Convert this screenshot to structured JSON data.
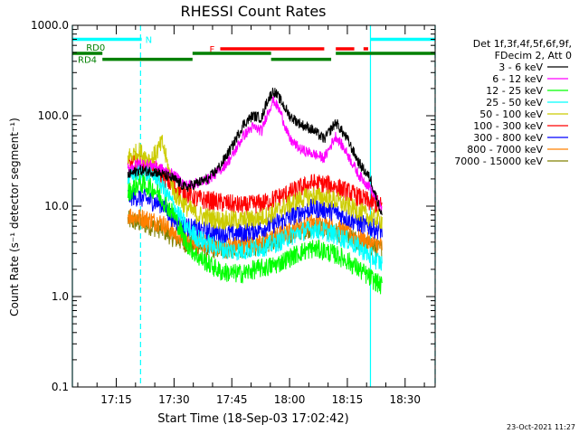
{
  "timestamp": "23-Oct-2021 11:27",
  "chart_data": {
    "type": "line",
    "title": "RHESSI Count Rates",
    "xlabel": "Start Time (18-Sep-03 17:02:42)",
    "ylabel": "Count Rate (s⁻¹ detector segment⁻¹)",
    "yscale": "log",
    "ylim": [
      0.1,
      1000
    ],
    "xlim_minutes": [
      17.06,
      18.63
    ],
    "x_ticks": [
      {
        "t": 17.25,
        "label": "17:15"
      },
      {
        "t": 17.5,
        "label": "17:30"
      },
      {
        "t": 17.75,
        "label": "17:45"
      },
      {
        "t": 18.0,
        "label": "18:00"
      },
      {
        "t": 18.25,
        "label": "18:15"
      },
      {
        "t": 18.5,
        "label": "18:30"
      }
    ],
    "y_ticks": [
      {
        "v": 1000,
        "label": "1000.0"
      },
      {
        "v": 100,
        "label": "100.0"
      },
      {
        "v": 10,
        "label": "10.0"
      },
      {
        "v": 1,
        "label": "1.0"
      },
      {
        "v": 0.1,
        "label": "0.1"
      }
    ],
    "legend": {
      "header": [
        "Det 1f,3f,4f,5f,6f,9f,",
        "FDecim 2, Att 0"
      ],
      "placement": "right"
    },
    "series": [
      {
        "name": "3 - 6 keV",
        "color": "#000000",
        "t": [
          17.3,
          17.35,
          17.42,
          17.5,
          17.55,
          17.6,
          17.65,
          17.7,
          17.75,
          17.8,
          17.84,
          17.88,
          17.9,
          17.93,
          17.96,
          18.0,
          18.05,
          18.1,
          18.15,
          18.2,
          18.25,
          18.3,
          18.35,
          18.4
        ],
        "v": [
          22,
          25,
          24,
          20,
          16,
          18,
          20,
          28,
          45,
          80,
          100,
          95,
          140,
          190,
          150,
          100,
          80,
          70,
          55,
          85,
          55,
          30,
          20,
          8
        ]
      },
      {
        "name": "6 - 12 keV",
        "color": "#ff00ff",
        "t": [
          17.3,
          17.35,
          17.42,
          17.5,
          17.55,
          17.6,
          17.65,
          17.7,
          17.75,
          17.8,
          17.84,
          17.88,
          17.9,
          17.93,
          17.96,
          18.0,
          18.05,
          18.1,
          18.15,
          18.2,
          18.25,
          18.3,
          18.35,
          18.4
        ],
        "v": [
          26,
          30,
          28,
          22,
          17,
          18,
          20,
          25,
          35,
          60,
          75,
          68,
          100,
          150,
          110,
          55,
          42,
          38,
          34,
          60,
          38,
          22,
          16,
          9
        ]
      },
      {
        "name": "12 - 25 keV",
        "color": "#00ff00",
        "t": [
          17.3,
          17.35,
          17.42,
          17.5,
          17.55,
          17.6,
          17.65,
          17.7,
          17.75,
          17.8,
          17.85,
          17.9,
          17.95,
          18.0,
          18.05,
          18.1,
          18.15,
          18.2,
          18.25,
          18.3,
          18.35,
          18.4
        ],
        "v": [
          14,
          18,
          15,
          8,
          4,
          2.8,
          2.3,
          1.9,
          1.8,
          1.8,
          2.0,
          2.1,
          2.3,
          2.7,
          3.1,
          3.4,
          3.2,
          2.9,
          2.5,
          2.0,
          1.6,
          1.3
        ]
      },
      {
        "name": "25 - 50 keV",
        "color": "#00ffff",
        "t": [
          17.3,
          17.35,
          17.42,
          17.5,
          17.55,
          17.6,
          17.65,
          17.7,
          17.75,
          17.8,
          17.85,
          17.9,
          17.95,
          18.0,
          18.05,
          18.1,
          18.15,
          18.2,
          18.25,
          18.3,
          18.35,
          18.4
        ],
        "v": [
          20,
          24,
          22,
          10,
          6,
          4.5,
          3.8,
          3.4,
          3.2,
          3.2,
          3.4,
          3.6,
          4.0,
          4.6,
          5.2,
          5.6,
          5.3,
          4.8,
          4.2,
          3.5,
          2.8,
          2.3
        ]
      },
      {
        "name": "50 - 100 keV",
        "color": "#cccc00",
        "t": [
          17.3,
          17.35,
          17.4,
          17.45,
          17.5,
          17.55,
          17.6,
          17.65,
          17.7,
          17.75,
          17.8,
          17.85,
          17.9,
          17.95,
          18.0,
          18.05,
          18.1,
          18.15,
          18.2,
          18.25,
          18.3,
          18.35,
          18.4
        ],
        "v": [
          35,
          40,
          32,
          50,
          14,
          10,
          8,
          7.5,
          7,
          7,
          7,
          7.2,
          7.8,
          9,
          10.5,
          12,
          13,
          12.5,
          11.5,
          10,
          8.8,
          7.5,
          7
        ]
      },
      {
        "name": "100 - 300 keV",
        "color": "#ff0000",
        "t": [
          17.3,
          17.35,
          17.4,
          17.45,
          17.5,
          17.55,
          17.6,
          17.65,
          17.7,
          17.75,
          17.8,
          17.85,
          17.9,
          17.95,
          18.0,
          18.05,
          18.1,
          18.15,
          18.2,
          18.25,
          18.3,
          18.35,
          18.4
        ],
        "v": [
          28,
          30,
          26,
          22,
          16,
          14,
          12,
          11.5,
          11,
          10.5,
          10,
          10.5,
          11,
          12.5,
          14,
          16,
          18,
          17.5,
          16.5,
          14.5,
          12.5,
          11,
          10
        ]
      },
      {
        "name": "300 - 800 keV",
        "color": "#0000ff",
        "t": [
          17.3,
          17.35,
          17.4,
          17.45,
          17.5,
          17.55,
          17.6,
          17.65,
          17.7,
          17.75,
          17.8,
          17.85,
          17.9,
          17.95,
          18.0,
          18.05,
          18.1,
          18.15,
          18.2,
          18.25,
          18.3,
          18.35,
          18.4
        ],
        "v": [
          13,
          12.5,
          11.5,
          10.5,
          7,
          6,
          5.5,
          5.2,
          5.0,
          5.0,
          5.1,
          5.4,
          5.9,
          6.6,
          7.5,
          8.6,
          9.5,
          9.2,
          8.5,
          7.4,
          6.5,
          5.8,
          5.4
        ]
      },
      {
        "name": "800 - 7000 keV",
        "color": "#ff8000",
        "t": [
          17.3,
          17.35,
          17.4,
          17.45,
          17.5,
          17.55,
          17.6,
          17.65,
          17.7,
          17.75,
          17.8,
          17.85,
          17.9,
          17.95,
          18.0,
          18.05,
          18.1,
          18.15,
          18.2,
          18.25,
          18.3,
          18.35,
          18.4
        ],
        "v": [
          8,
          7.5,
          7,
          6.5,
          5,
          4.3,
          4.0,
          3.8,
          3.6,
          3.6,
          3.7,
          3.9,
          4.2,
          4.7,
          5.3,
          6.0,
          6.5,
          6.3,
          5.8,
          5.0,
          4.4,
          3.9,
          3.6
        ]
      },
      {
        "name": "7000 - 15000 keV",
        "color": "#808000",
        "t": [
          17.3,
          17.35,
          17.4,
          17.45,
          17.5,
          17.55,
          17.6,
          17.65,
          17.7,
          17.75,
          17.8,
          17.85,
          17.9,
          17.95,
          18.0,
          18.05,
          18.1,
          18.15,
          18.2,
          18.25,
          18.3,
          18.35,
          18.4
        ],
        "v": [
          7,
          6.5,
          6,
          5.5,
          4.4,
          3.9,
          3.6,
          3.4,
          3.3,
          3.3,
          3.4,
          3.6,
          3.9,
          4.3,
          4.8,
          5.4,
          5.8,
          5.6,
          5.2,
          4.6,
          4.0,
          3.6,
          3.3
        ]
      }
    ],
    "vlines": [
      {
        "t": 17.06,
        "style": "solid",
        "color": "#00ffff"
      },
      {
        "t": 17.355,
        "style": "dashed",
        "color": "#00ffff"
      },
      {
        "t": 18.35,
        "style": "solid",
        "color": "#00ffff"
      },
      {
        "t": 18.63,
        "style": "dashed",
        "color": "#00ffff"
      }
    ],
    "state_bars": [
      {
        "label": "N",
        "color": "#00ffff",
        "value": 700,
        "segments": [
          [
            17.06,
            17.36
          ],
          [
            18.35,
            18.63
          ]
        ]
      },
      {
        "label": "F",
        "color": "#ff0000",
        "value": 550,
        "segments": [
          [
            17.7,
            18.15
          ],
          [
            18.2,
            18.28
          ],
          [
            18.32,
            18.34
          ]
        ]
      },
      {
        "label": "RD0",
        "color": "#008000",
        "value": 490,
        "segments": [
          [
            17.06,
            17.19
          ],
          [
            17.58,
            17.92
          ],
          [
            18.2,
            18.63
          ]
        ]
      },
      {
        "label": "RD4",
        "color": "#008000",
        "value": 420,
        "segments": [
          [
            17.19,
            17.58
          ],
          [
            17.92,
            18.18
          ]
        ]
      }
    ]
  }
}
